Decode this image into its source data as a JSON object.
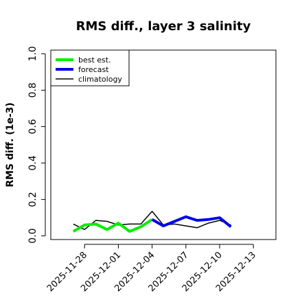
{
  "chart_data": {
    "type": "line",
    "title": "RMS diff., layer 3 salinity",
    "xlabel": "",
    "ylabel": "RMS diff. (1e-3)",
    "ylim": [
      -0.02,
      1.02
    ],
    "yticks": [
      "0.0",
      "0.2",
      "0.4",
      "0.6",
      "0.8",
      "1.0"
    ],
    "xlim": [
      "2025-11-25",
      "2025-12-15"
    ],
    "xticks": [
      {
        "date": "2025-11-28",
        "label": "2025-11-28",
        "color": "#000000"
      },
      {
        "date": "2025-12-01",
        "label": "2025-12-01",
        "color": "#000000"
      },
      {
        "date": "2025-12-04",
        "label": "2025-12-04",
        "color": "#1a7a1a"
      },
      {
        "date": "2025-12-07",
        "label": "2025-12-07",
        "color": "#000000"
      },
      {
        "date": "2025-12-10",
        "label": "2025-12-10",
        "color": "#000000"
      },
      {
        "date": "2025-12-13",
        "label": "2025-12-13",
        "color": "#000000"
      }
    ],
    "legend_position": "top-left",
    "series": [
      {
        "name": "best est.",
        "color": "#00ee00",
        "x": [
          "2025-11-27",
          "2025-11-28",
          "2025-11-29",
          "2025-11-30",
          "2025-12-01",
          "2025-12-02",
          "2025-12-03",
          "2025-12-04"
        ],
        "y": [
          0.025,
          0.06,
          0.065,
          0.035,
          0.07,
          0.025,
          0.05,
          0.09
        ]
      },
      {
        "name": "forecast",
        "color": "#0000ee",
        "x": [
          "2025-12-04",
          "2025-12-05",
          "2025-12-06",
          "2025-12-07",
          "2025-12-08",
          "2025-12-09",
          "2025-12-10",
          "2025-12-11"
        ],
        "y": [
          0.09,
          0.055,
          0.08,
          0.105,
          0.085,
          0.09,
          0.1,
          0.05
        ]
      },
      {
        "name": "climatology",
        "color": "#000000",
        "x": [
          "2025-11-27",
          "2025-11-28",
          "2025-11-29",
          "2025-11-30",
          "2025-12-01",
          "2025-12-02",
          "2025-12-03",
          "2025-12-04",
          "2025-12-05",
          "2025-12-06",
          "2025-12-07",
          "2025-12-08",
          "2025-12-09",
          "2025-12-10",
          "2025-12-11"
        ],
        "y": [
          0.065,
          0.035,
          0.085,
          0.08,
          0.06,
          0.065,
          0.065,
          0.135,
          0.06,
          0.065,
          0.055,
          0.045,
          0.07,
          0.085,
          0.06
        ]
      }
    ]
  }
}
